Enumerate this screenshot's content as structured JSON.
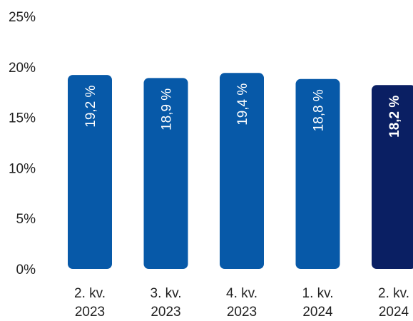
{
  "chart_data": {
    "type": "bar",
    "categories": [
      [
        "2. kv.",
        "2023"
      ],
      [
        "3. kv.",
        "2023"
      ],
      [
        "4. kv.",
        "2023"
      ],
      [
        "1. kv.",
        "2024"
      ],
      [
        "2. kv.",
        "2024"
      ]
    ],
    "values": [
      19.2,
      18.9,
      19.4,
      18.8,
      18.2
    ],
    "data_labels": [
      "19,2 %",
      "18,9 %",
      "19,4 %",
      "18,8 %",
      "18,2 %"
    ],
    "highlight_index": 4,
    "yticks": [
      0,
      5,
      10,
      15,
      20,
      25
    ],
    "ytick_labels": [
      "0%",
      "5%",
      "10%",
      "15%",
      "20%",
      "25%"
    ],
    "ylim": [
      0,
      25
    ],
    "grid": false,
    "colors": {
      "bar": "#0759a8",
      "highlight": "#0a1f63",
      "label": "#ffffff",
      "axis_text": "#222222"
    }
  }
}
